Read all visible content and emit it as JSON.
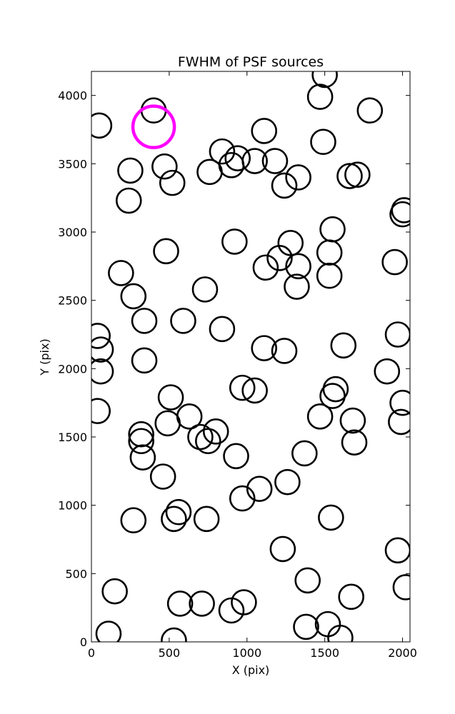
{
  "chart_data": {
    "type": "scatter",
    "title": "FWHM of PSF sources",
    "xlabel": "X (pix)",
    "ylabel": "Y (pix)",
    "xlim": [
      0,
      2048
    ],
    "ylim": [
      0,
      4176
    ],
    "xticks": [
      0,
      500,
      1000,
      1500,
      2000
    ],
    "yticks": [
      0,
      500,
      1000,
      1500,
      2000,
      2500,
      3000,
      3500,
      4000
    ],
    "grid": false,
    "marker": "open-circle",
    "marker_color": "#000000",
    "highlight_color": "#ff00ff",
    "points": [
      {
        "x": 50,
        "y": 3780
      },
      {
        "x": 400,
        "y": 3890
      },
      {
        "x": 1500,
        "y": 4150
      },
      {
        "x": 1470,
        "y": 3990
      },
      {
        "x": 1790,
        "y": 3890
      },
      {
        "x": 1110,
        "y": 3740
      },
      {
        "x": 1490,
        "y": 3660
      },
      {
        "x": 840,
        "y": 3590
      },
      {
        "x": 940,
        "y": 3540
      },
      {
        "x": 1050,
        "y": 3520
      },
      {
        "x": 1180,
        "y": 3520
      },
      {
        "x": 900,
        "y": 3490
      },
      {
        "x": 250,
        "y": 3450
      },
      {
        "x": 470,
        "y": 3480
      },
      {
        "x": 760,
        "y": 3440
      },
      {
        "x": 1330,
        "y": 3400
      },
      {
        "x": 1240,
        "y": 3340
      },
      {
        "x": 520,
        "y": 3360
      },
      {
        "x": 1660,
        "y": 3410
      },
      {
        "x": 1710,
        "y": 3420
      },
      {
        "x": 240,
        "y": 3230
      },
      {
        "x": 2010,
        "y": 3160
      },
      {
        "x": 2000,
        "y": 3130
      },
      {
        "x": 1550,
        "y": 3020
      },
      {
        "x": 920,
        "y": 2930
      },
      {
        "x": 1280,
        "y": 2920
      },
      {
        "x": 480,
        "y": 2860
      },
      {
        "x": 1530,
        "y": 2850
      },
      {
        "x": 1210,
        "y": 2810
      },
      {
        "x": 1950,
        "y": 2780
      },
      {
        "x": 1120,
        "y": 2740
      },
      {
        "x": 1330,
        "y": 2750
      },
      {
        "x": 190,
        "y": 2700
      },
      {
        "x": 1530,
        "y": 2680
      },
      {
        "x": 1320,
        "y": 2600
      },
      {
        "x": 730,
        "y": 2580
      },
      {
        "x": 270,
        "y": 2530
      },
      {
        "x": 340,
        "y": 2350
      },
      {
        "x": 590,
        "y": 2350
      },
      {
        "x": 840,
        "y": 2290
      },
      {
        "x": 40,
        "y": 2240
      },
      {
        "x": 1970,
        "y": 2250
      },
      {
        "x": 60,
        "y": 2140
      },
      {
        "x": 1110,
        "y": 2150
      },
      {
        "x": 1240,
        "y": 2130
      },
      {
        "x": 1620,
        "y": 2170
      },
      {
        "x": 340,
        "y": 2060
      },
      {
        "x": 60,
        "y": 1980
      },
      {
        "x": 1900,
        "y": 1980
      },
      {
        "x": 970,
        "y": 1860
      },
      {
        "x": 1050,
        "y": 1840
      },
      {
        "x": 1570,
        "y": 1850
      },
      {
        "x": 1550,
        "y": 1800
      },
      {
        "x": 510,
        "y": 1790
      },
      {
        "x": 2000,
        "y": 1750
      },
      {
        "x": 40,
        "y": 1690
      },
      {
        "x": 630,
        "y": 1650
      },
      {
        "x": 1470,
        "y": 1650
      },
      {
        "x": 1680,
        "y": 1620
      },
      {
        "x": 1990,
        "y": 1610
      },
      {
        "x": 490,
        "y": 1600
      },
      {
        "x": 320,
        "y": 1520
      },
      {
        "x": 800,
        "y": 1540
      },
      {
        "x": 700,
        "y": 1500
      },
      {
        "x": 750,
        "y": 1470
      },
      {
        "x": 320,
        "y": 1470
      },
      {
        "x": 1690,
        "y": 1460
      },
      {
        "x": 1370,
        "y": 1380
      },
      {
        "x": 330,
        "y": 1350
      },
      {
        "x": 930,
        "y": 1360
      },
      {
        "x": 460,
        "y": 1210
      },
      {
        "x": 1260,
        "y": 1170
      },
      {
        "x": 1080,
        "y": 1120
      },
      {
        "x": 970,
        "y": 1050
      },
      {
        "x": 560,
        "y": 950
      },
      {
        "x": 530,
        "y": 900
      },
      {
        "x": 270,
        "y": 890
      },
      {
        "x": 740,
        "y": 900
      },
      {
        "x": 1540,
        "y": 910
      },
      {
        "x": 1230,
        "y": 680
      },
      {
        "x": 1970,
        "y": 670
      },
      {
        "x": 1390,
        "y": 450
      },
      {
        "x": 2020,
        "y": 400
      },
      {
        "x": 150,
        "y": 370
      },
      {
        "x": 1670,
        "y": 330
      },
      {
        "x": 980,
        "y": 290
      },
      {
        "x": 570,
        "y": 280
      },
      {
        "x": 710,
        "y": 280
      },
      {
        "x": 900,
        "y": 230
      },
      {
        "x": 1520,
        "y": 130
      },
      {
        "x": 1380,
        "y": 110
      },
      {
        "x": 1600,
        "y": 30
      },
      {
        "x": 110,
        "y": 60
      },
      {
        "x": 530,
        "y": 10
      }
    ],
    "highlight_points": [
      {
        "x": 400,
        "y": 3770
      }
    ]
  }
}
